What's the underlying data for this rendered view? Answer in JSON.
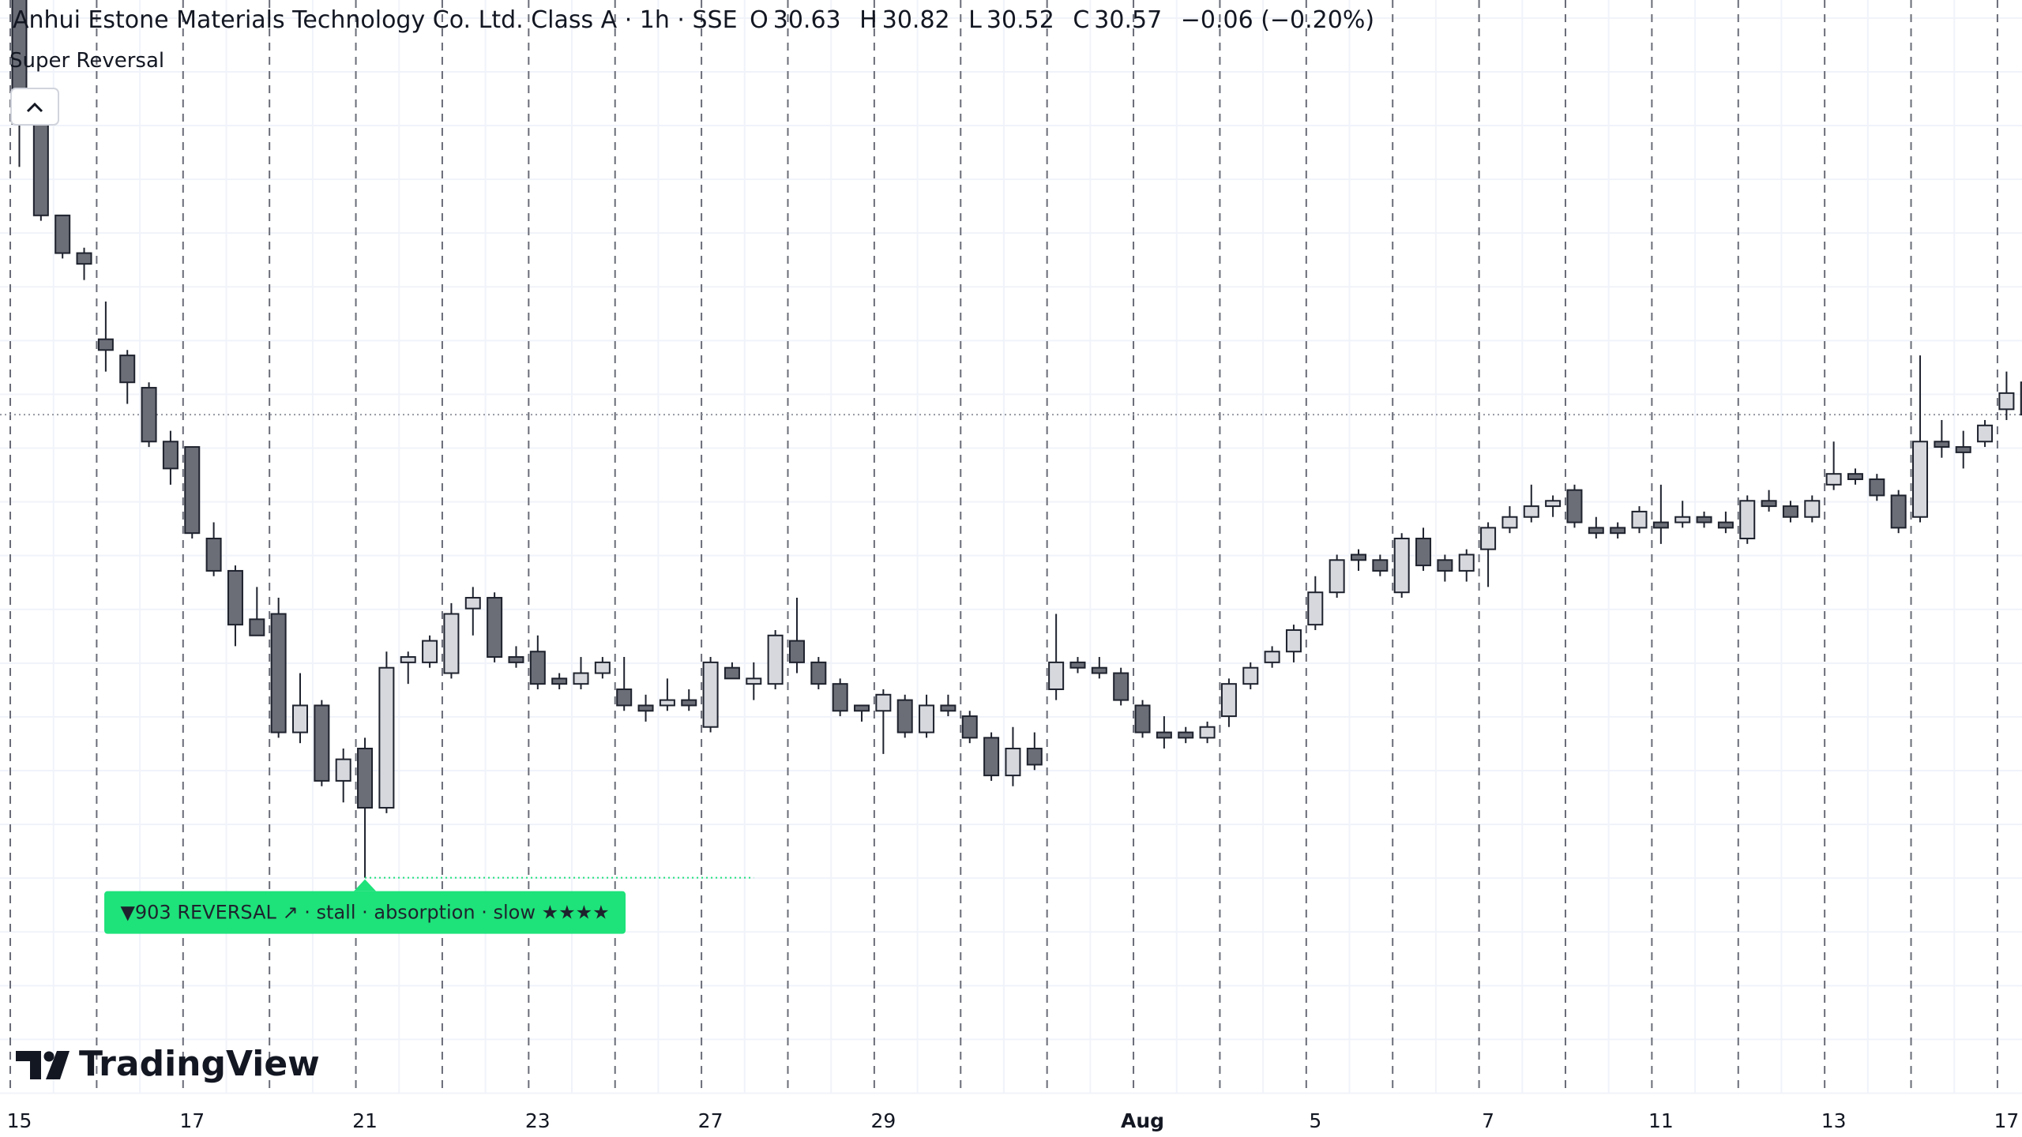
{
  "chart_data": {
    "type": "candlestick",
    "title": "Anhui Estone Materials Technology Co. Ltd. Class A · 1h · SSE",
    "ohlc_labels": [
      "O",
      "H",
      "L",
      "C"
    ],
    "change_label": "−0.06 (−0.20%)",
    "indicator": "Super Reversal",
    "annotation": "▼903 REVERSAL ↗ · stall · absorption · slow ★★★★",
    "annotation_color": "#1ee27a",
    "watermark": "TradingView",
    "up_color": "#d6d8de",
    "down_color": "#6b6e77",
    "border_color": "#1e222d",
    "ylim": [
      29.31,
      31.34
    ],
    "categories": [
      "15",
      null,
      null,
      null,
      null,
      null,
      null,
      null,
      "17",
      null,
      null,
      null,
      null,
      null,
      null,
      null,
      "21",
      null,
      null,
      null,
      null,
      null,
      null,
      null,
      "23",
      null,
      null,
      null,
      null,
      null,
      null,
      null,
      "27",
      null,
      null,
      null,
      null,
      null,
      null,
      null,
      "29",
      null,
      null,
      null,
      null,
      null,
      null,
      null,
      null,
      null,
      null,
      null,
      "Aug",
      null,
      null,
      null,
      null,
      null,
      null,
      null,
      "5",
      null,
      null,
      null,
      null,
      null,
      null,
      null,
      "7",
      null,
      null,
      null,
      null,
      null,
      null,
      null,
      "11",
      null,
      null,
      null,
      null,
      null,
      null,
      null,
      "13",
      null,
      null,
      null,
      null,
      null,
      null,
      null,
      "17",
      null
    ],
    "open": [
      31.44,
      31.11,
      30.94,
      30.87,
      30.71,
      30.68,
      30.62,
      30.52,
      30.51,
      30.34,
      30.28,
      30.19,
      30.2,
      29.98,
      30.03,
      29.89,
      29.95,
      29.84,
      30.11,
      30.11,
      30.09,
      30.21,
      30.23,
      30.12,
      30.13,
      30.08,
      30.07,
      30.09,
      30.06,
      30.03,
      30.03,
      30.04,
      29.99,
      30.1,
      30.07,
      30.07,
      30.15,
      30.11,
      30.07,
      30.03,
      30.02,
      30.04,
      29.98,
      30.03,
      30.01,
      29.97,
      29.9,
      29.95,
      30.06,
      30.11,
      30.1,
      30.09,
      30.03,
      29.98,
      29.98,
      29.97,
      30.01,
      30.07,
      30.11,
      30.13,
      30.18,
      30.24,
      30.31,
      30.3,
      30.24,
      30.34,
      30.3,
      30.28,
      30.32,
      30.36,
      30.38,
      30.4,
      30.43,
      30.36,
      30.36,
      30.36,
      30.37,
      30.37,
      30.38,
      30.37,
      30.34,
      30.41,
      30.4,
      30.38,
      30.44,
      30.46,
      30.45,
      30.42,
      30.38,
      30.52,
      30.51,
      30.52,
      30.58,
      30.63
    ],
    "high": [
      31.48,
      31.11,
      30.94,
      30.88,
      30.78,
      30.69,
      30.63,
      30.54,
      30.51,
      30.37,
      30.29,
      30.25,
      30.23,
      30.09,
      30.04,
      29.95,
      29.97,
      30.13,
      30.13,
      30.16,
      30.22,
      30.25,
      30.24,
      30.14,
      30.16,
      30.09,
      30.12,
      30.12,
      30.12,
      30.05,
      30.08,
      30.06,
      30.12,
      30.11,
      30.11,
      30.17,
      30.23,
      30.12,
      30.08,
      30.03,
      30.06,
      30.05,
      30.05,
      30.05,
      30.02,
      29.98,
      29.99,
      29.98,
      30.2,
      30.12,
      30.12,
      30.1,
      30.04,
      30.01,
      29.99,
      30.0,
      30.08,
      30.11,
      30.14,
      30.18,
      30.27,
      30.31,
      30.32,
      30.31,
      30.35,
      30.36,
      30.31,
      30.32,
      30.37,
      30.4,
      30.44,
      30.42,
      30.44,
      30.38,
      30.37,
      30.4,
      30.44,
      30.41,
      30.39,
      30.39,
      30.42,
      30.43,
      30.41,
      30.42,
      30.52,
      30.47,
      30.46,
      30.43,
      30.68,
      30.56,
      30.54,
      30.56,
      30.65,
      30.82
    ],
    "low": [
      31.03,
      30.93,
      30.86,
      30.82,
      30.65,
      30.59,
      30.51,
      30.44,
      30.34,
      30.27,
      30.14,
      30.16,
      29.97,
      29.96,
      29.88,
      29.85,
      29.71,
      29.83,
      30.07,
      30.1,
      30.08,
      30.16,
      30.11,
      30.1,
      30.06,
      30.06,
      30.06,
      30.08,
      30.02,
      30.0,
      30.02,
      30.02,
      29.98,
      30.08,
      30.04,
      30.06,
      30.09,
      30.06,
      30.01,
      30.0,
      29.94,
      29.97,
      29.97,
      30.01,
      29.96,
      29.89,
      29.88,
      29.91,
      30.04,
      30.09,
      30.08,
      30.03,
      29.97,
      29.95,
      29.96,
      29.96,
      29.99,
      30.06,
      30.1,
      30.11,
      30.17,
      30.23,
      30.28,
      30.27,
      30.23,
      30.28,
      30.26,
      30.26,
      30.25,
      30.35,
      30.37,
      30.38,
      30.36,
      30.34,
      30.34,
      30.35,
      30.33,
      30.36,
      30.36,
      30.35,
      30.33,
      30.39,
      30.37,
      30.37,
      30.43,
      30.44,
      30.41,
      30.35,
      30.37,
      30.49,
      30.47,
      30.51,
      30.56,
      30.52
    ],
    "close": [
      31.11,
      30.94,
      30.87,
      30.85,
      30.69,
      30.63,
      30.52,
      30.47,
      30.35,
      30.28,
      30.18,
      30.16,
      29.98,
      30.03,
      29.89,
      29.93,
      29.84,
      30.1,
      30.12,
      30.15,
      30.2,
      30.23,
      30.12,
      30.11,
      30.07,
      30.07,
      30.09,
      30.11,
      30.03,
      30.02,
      30.04,
      30.03,
      30.11,
      30.08,
      30.08,
      30.16,
      30.11,
      30.07,
      30.02,
      30.02,
      30.05,
      29.98,
      30.03,
      30.02,
      29.97,
      29.9,
      29.95,
      29.92,
      30.11,
      30.1,
      30.09,
      30.04,
      29.98,
      29.97,
      29.97,
      29.99,
      30.07,
      30.1,
      30.13,
      30.17,
      30.24,
      30.3,
      30.3,
      30.28,
      30.34,
      30.29,
      30.28,
      30.31,
      30.36,
      30.38,
      30.4,
      30.41,
      30.37,
      30.35,
      30.35,
      30.39,
      30.36,
      30.38,
      30.37,
      30.36,
      30.41,
      30.4,
      30.38,
      30.41,
      30.46,
      30.45,
      30.42,
      30.36,
      30.52,
      30.51,
      30.5,
      30.55,
      30.61,
      30.57
    ]
  }
}
